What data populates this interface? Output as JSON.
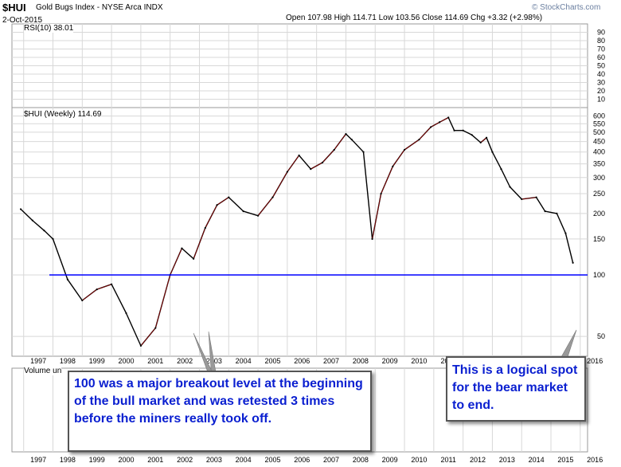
{
  "header": {
    "symbol": "$HUI",
    "name": "Gold Bugs Index - NYSE Arca INDX",
    "date": "2-Oct-2015",
    "quote": "Open 107.98  High 114.71  Low 103.56  Close 114.69  Chg +3.32 (+2.98%)",
    "watermark": "© StockCharts.com"
  },
  "panels": {
    "rsi_label": "RSI(10) 38.01",
    "price_label": "$HUI (Weekly) 114.69",
    "volume_label": "Volume un"
  },
  "annotations": {
    "left": "100 was a major breakout level at the beginning of the bull market and was retested 3 times before the miners really took off.",
    "right": "This is a logical spot for the bear market to end."
  },
  "colors": {
    "price_line": "#000000",
    "price_up": "#cc0000",
    "support_line": "#0000ff",
    "callout_text": "#0a1fd0",
    "grid": "#d8d8d8"
  },
  "chart_data": {
    "type": "line",
    "title": "$HUI (Weekly) 114.69",
    "x": [
      1996.9,
      1997.3,
      1997.7,
      1998.0,
      1998.5,
      1999.0,
      1999.5,
      2000.0,
      2000.5,
      2001.0,
      2001.5,
      2002.0,
      2002.4,
      2002.8,
      2003.2,
      2003.6,
      2004.0,
      2004.5,
      2005.0,
      2005.5,
      2006.0,
      2006.4,
      2006.8,
      2007.2,
      2007.6,
      2008.0,
      2008.2,
      2008.6,
      2008.9,
      2009.2,
      2009.6,
      2010.0,
      2010.5,
      2010.9,
      2011.2,
      2011.5,
      2011.7,
      2012.0,
      2012.3,
      2012.6,
      2012.8,
      2013.0,
      2013.3,
      2013.6,
      2014.0,
      2014.5,
      2014.8,
      2015.2,
      2015.5,
      2015.75
    ],
    "values": [
      210,
      185,
      165,
      150,
      95,
      75,
      85,
      90,
      65,
      45,
      55,
      100,
      135,
      120,
      170,
      220,
      240,
      205,
      195,
      240,
      320,
      385,
      330,
      355,
      410,
      490,
      460,
      400,
      150,
      250,
      340,
      410,
      460,
      530,
      560,
      590,
      510,
      510,
      485,
      445,
      470,
      400,
      330,
      270,
      235,
      240,
      205,
      200,
      160,
      114.69
    ],
    "xlabel": "",
    "ylabel": "",
    "ylim": [
      40,
      660
    ],
    "x_ticks": [
      "1997",
      "1998",
      "1999",
      "2000",
      "2001",
      "2002",
      "2003",
      "2004",
      "2005",
      "2006",
      "2007",
      "2008",
      "2009",
      "2010",
      "2011",
      "2012",
      "2013",
      "2014",
      "2015",
      "2016"
    ],
    "y_ticks": [
      50,
      100,
      150,
      200,
      250,
      300,
      350,
      400,
      450,
      500,
      550,
      600
    ],
    "rsi_ticks": [
      10,
      20,
      30,
      40,
      50,
      60,
      70,
      80,
      90
    ],
    "support_level": 100,
    "scale": "log",
    "grid": true
  }
}
